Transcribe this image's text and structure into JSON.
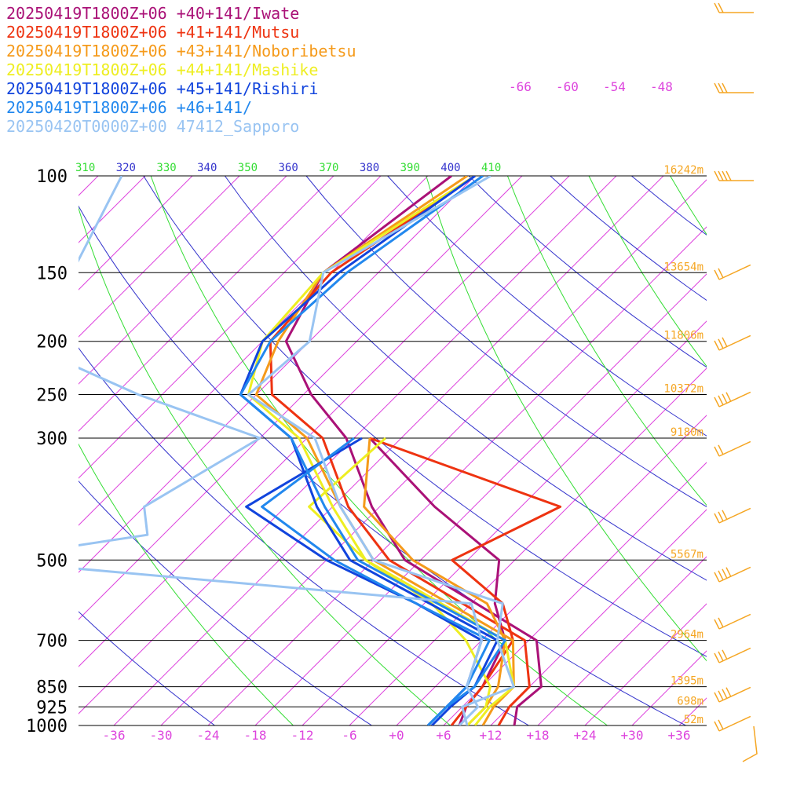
{
  "colors": {
    "isotherm": "#dd44dd",
    "isobar": "#000000",
    "dry_adiabat": "#3333cc",
    "moist_adiabat": "#33dd33",
    "height": "#f5a623",
    "barb": "#f5a623"
  },
  "chart_data": {
    "type": "line",
    "title": "",
    "xlabel": "",
    "ylabel": "",
    "x_scale": "skewed temperature (deg C)",
    "y_scale": "log pressure (hPa)",
    "pressure_levels": [
      100,
      150,
      200,
      250,
      300,
      500,
      700,
      850,
      925,
      1000
    ],
    "pressure_labels": [
      "100",
      "150",
      "200",
      "250",
      "300",
      "500",
      "700",
      "850",
      "925",
      "1000"
    ],
    "temperature_ticks": [
      -36,
      -30,
      -24,
      -18,
      -12,
      -6,
      0,
      6,
      12,
      18,
      24,
      30,
      36
    ],
    "temperature_tick_labels": [
      "-36",
      "-30",
      "-24",
      "-18",
      "-12",
      "-6",
      "+0",
      "+6",
      "+12",
      "+18",
      "+24",
      "+30",
      "+36"
    ],
    "mixing_ratio_labels": [
      "-66",
      "-60",
      "-54",
      "-48"
    ],
    "theta_labels": [
      "310",
      "320",
      "330",
      "340",
      "350",
      "360",
      "370",
      "380",
      "390",
      "400",
      "410"
    ],
    "heights": [
      {
        "p": 100,
        "label": "16242m"
      },
      {
        "p": 150,
        "label": "13654m"
      },
      {
        "p": 200,
        "label": "11806m"
      },
      {
        "p": 250,
        "label": "10372m"
      },
      {
        "p": 300,
        "label": "9180m"
      },
      {
        "p": 500,
        "label": "5567m"
      },
      {
        "p": 700,
        "label": "2964m"
      },
      {
        "p": 850,
        "label": "1395m"
      },
      {
        "p": 925,
        "label": "698m"
      },
      {
        "p": 1000,
        "label": "52m"
      }
    ],
    "series": [
      {
        "name": "20250419T1800Z+06 +40+141/Iwate",
        "color": "#aa1177",
        "temp": [
          [
            1000,
            15
          ],
          [
            925,
            13
          ],
          [
            850,
            13.5
          ],
          [
            700,
            7
          ],
          [
            500,
            -20
          ],
          [
            400,
            -31
          ],
          [
            300,
            -43
          ],
          [
            250,
            -53
          ],
          [
            200,
            -63
          ],
          [
            150,
            -67
          ],
          [
            100,
            -63
          ]
        ],
        "dew": [
          [
            1000,
            8
          ],
          [
            925,
            6.5
          ],
          [
            850,
            6
          ],
          [
            700,
            3
          ],
          [
            600,
            -3
          ],
          [
            500,
            -8
          ],
          [
            400,
            -23
          ],
          [
            300,
            -40
          ]
        ]
      },
      {
        "name": "20250419T1800Z+06 +41+141/Mutsu",
        "color": "#ee3311",
        "temp": [
          [
            1000,
            13
          ],
          [
            925,
            12
          ],
          [
            850,
            12
          ],
          [
            700,
            5.5
          ],
          [
            500,
            -22
          ],
          [
            400,
            -34
          ],
          [
            300,
            -46
          ],
          [
            250,
            -58
          ],
          [
            200,
            -65
          ],
          [
            150,
            -66
          ],
          [
            100,
            -60
          ]
        ],
        "dew": [
          [
            1000,
            7
          ],
          [
            925,
            6.5
          ],
          [
            850,
            6
          ],
          [
            700,
            4
          ],
          [
            600,
            -2
          ],
          [
            500,
            -14
          ],
          [
            400,
            -7
          ],
          [
            300,
            -40
          ]
        ]
      },
      {
        "name": "20250419T1800Z+06 +43+141/Noboribetsu",
        "color": "#f59a1a",
        "temp": [
          [
            1000,
            11
          ],
          [
            925,
            10
          ],
          [
            850,
            10
          ],
          [
            700,
            4
          ],
          [
            500,
            -24
          ],
          [
            400,
            -35
          ],
          [
            300,
            -48
          ],
          [
            250,
            -60
          ],
          [
            200,
            -64
          ],
          [
            150,
            -67
          ],
          [
            100,
            -61
          ]
        ],
        "dew": [
          [
            1000,
            9
          ],
          [
            925,
            9
          ],
          [
            850,
            8
          ],
          [
            700,
            3
          ],
          [
            600,
            -4
          ],
          [
            500,
            -19
          ],
          [
            400,
            -32
          ],
          [
            300,
            -40
          ]
        ]
      },
      {
        "name": "20250419T1800Z+06 +44+141/Mashike",
        "color": "#eeee22",
        "temp": [
          [
            1000,
            10
          ],
          [
            925,
            9.5
          ],
          [
            850,
            10
          ],
          [
            700,
            3
          ],
          [
            500,
            -25
          ],
          [
            400,
            -36
          ],
          [
            300,
            -49
          ],
          [
            250,
            -61
          ],
          [
            200,
            -66
          ],
          [
            150,
            -67
          ],
          [
            100,
            -60
          ]
        ],
        "dew": [
          [
            1000,
            9
          ],
          [
            925,
            9
          ],
          [
            850,
            7
          ],
          [
            700,
            -2
          ],
          [
            600,
            -11
          ],
          [
            500,
            -25
          ],
          [
            400,
            -39
          ],
          [
            300,
            -38
          ]
        ]
      },
      {
        "name": "20250419T1800Z+06 +45+141/Rishiri",
        "color": "#1144dd",
        "temp": [
          [
            1000,
            4.5
          ],
          [
            925,
            4.5
          ],
          [
            850,
            5
          ],
          [
            700,
            2
          ],
          [
            500,
            -27
          ],
          [
            400,
            -38
          ],
          [
            300,
            -50
          ],
          [
            250,
            -62
          ],
          [
            200,
            -66
          ],
          [
            150,
            -65
          ],
          [
            100,
            -60
          ]
        ],
        "dew": [
          [
            1000,
            4
          ],
          [
            925,
            4
          ],
          [
            850,
            4
          ],
          [
            700,
            0
          ],
          [
            600,
            -13
          ],
          [
            500,
            -30
          ],
          [
            400,
            -47
          ],
          [
            300,
            -41
          ]
        ]
      },
      {
        "name": "20250419T1800Z+06 +46+141/",
        "color": "#2288ee",
        "temp": [
          [
            1000,
            4
          ],
          [
            925,
            4
          ],
          [
            850,
            5
          ],
          [
            700,
            3
          ],
          [
            500,
            -26
          ],
          [
            400,
            -37
          ],
          [
            300,
            -50
          ],
          [
            250,
            -62
          ],
          [
            200,
            -65
          ],
          [
            150,
            -64
          ],
          [
            100,
            -59
          ]
        ],
        "dew": [
          [
            1000,
            4
          ],
          [
            925,
            4
          ],
          [
            850,
            4
          ],
          [
            700,
            1
          ],
          [
            600,
            -13
          ],
          [
            500,
            -29
          ],
          [
            400,
            -45
          ],
          [
            300,
            -42
          ]
        ]
      },
      {
        "name": "20250420T0000Z+00 47412_Sapporo",
        "color": "#99c4f2",
        "temp": [
          [
            1000,
            9
          ],
          [
            925,
            6
          ],
          [
            850,
            10
          ],
          [
            700,
            2
          ],
          [
            600,
            -2
          ],
          [
            500,
            -24
          ],
          [
            400,
            -35
          ],
          [
            300,
            -47
          ],
          [
            250,
            -61
          ],
          [
            200,
            -60
          ],
          [
            150,
            -67
          ],
          [
            100,
            -58
          ]
        ],
        "dew": [
          [
            1000,
            8
          ],
          [
            925,
            8
          ],
          [
            850,
            4
          ],
          [
            700,
            0
          ],
          [
            600,
            -6
          ],
          [
            500,
            -74
          ],
          [
            450,
            -56
          ],
          [
            400,
            -60
          ],
          [
            300,
            -54
          ],
          [
            250,
            -75
          ],
          [
            200,
            -97
          ],
          [
            150,
            -99
          ],
          [
            100,
            -105
          ]
        ]
      }
    ]
  }
}
